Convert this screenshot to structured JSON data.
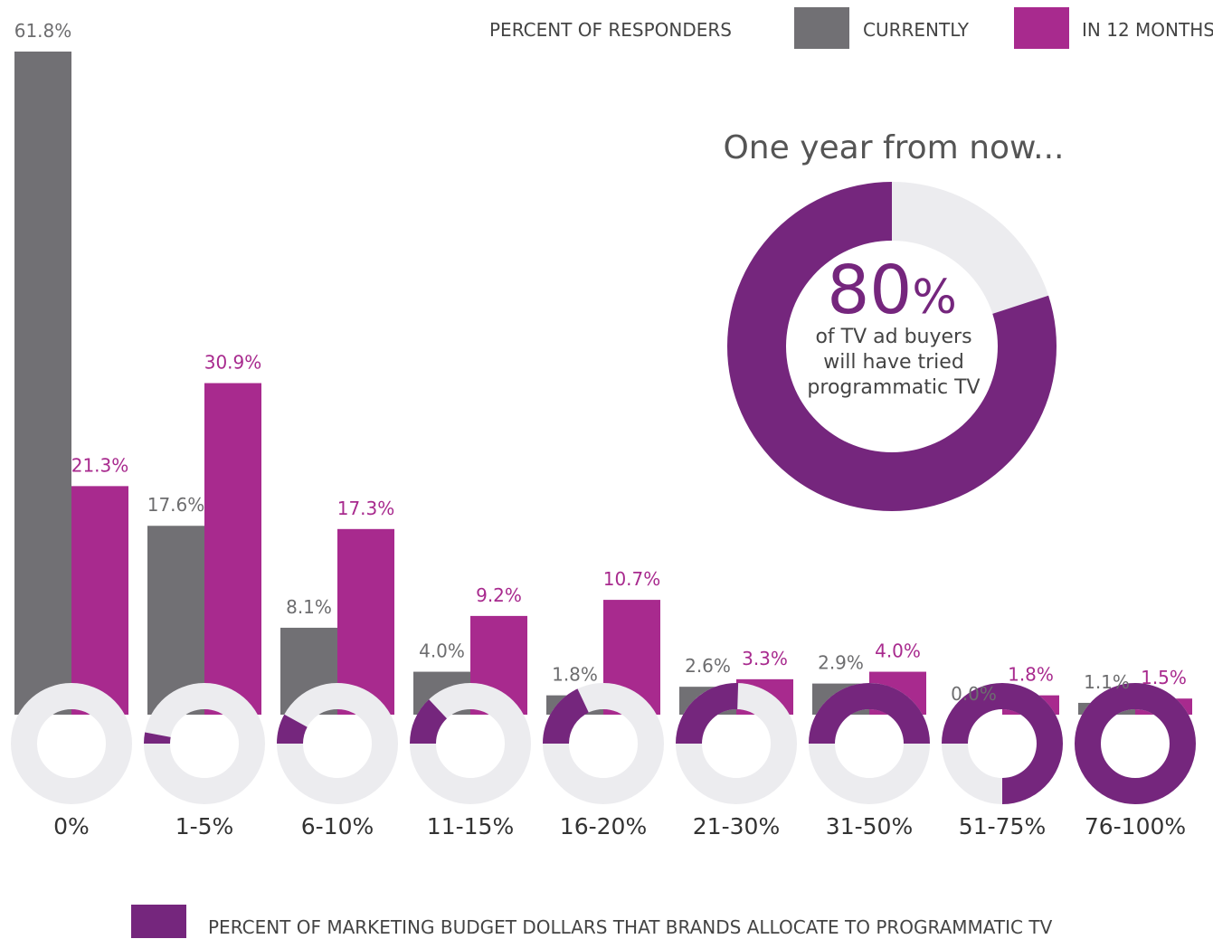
{
  "chart_data": {
    "type": "bar",
    "categories": [
      "0%",
      "1-5%",
      "6-10%",
      "11-15%",
      "16-20%",
      "21-30%",
      "31-50%",
      "51-75%",
      "76-100%"
    ],
    "series": [
      {
        "name": "CURRENTLY",
        "values": [
          61.8,
          17.6,
          8.1,
          4.0,
          1.8,
          2.6,
          2.9,
          0.0,
          1.1
        ],
        "labels": [
          "61.8%",
          "17.6%",
          "8.1%",
          "4.0%",
          "1.8%",
          "2.6%",
          "2.9%",
          "0.0%",
          "1.1%"
        ],
        "color": "#717074"
      },
      {
        "name": "IN 12 MONTHS",
        "values": [
          21.3,
          30.9,
          17.3,
          9.2,
          10.7,
          3.3,
          4.0,
          1.8,
          1.5
        ],
        "labels": [
          "21.3%",
          "30.9%",
          "17.3%",
          "9.2%",
          "10.7%",
          "3.3%",
          "4.0%",
          "1.8%",
          "1.5%"
        ],
        "color": "#a82a8e"
      }
    ],
    "category_ring_fractions": [
      0,
      0.03,
      0.08,
      0.13,
      0.18,
      0.255,
      0.5,
      0.75,
      1.0
    ],
    "ylim": [
      0,
      61.8
    ],
    "grid": false,
    "legend": {
      "placement": "top-right",
      "title": "PERCENT OF RESPONDERS",
      "bottom_label": "PERCENT OF MARKETING BUDGET DOLLARS  THAT BRANDS ALLOCATE TO PROGRAMMATIC TV"
    },
    "callout": {
      "heading": "One year from now...",
      "value_number": "80",
      "value_unit": "%",
      "value_fraction": 0.8,
      "line1": "of TV ad buyers",
      "line2": "will have tried",
      "line3": "programmatic TV"
    }
  },
  "colors": {
    "currently": "#717074",
    "in12": "#a82a8e",
    "ring": "#75267d",
    "track": "#ececef",
    "text": "#333333",
    "label_current": "#6d6d6f",
    "label_in12": "#a82a8e"
  }
}
